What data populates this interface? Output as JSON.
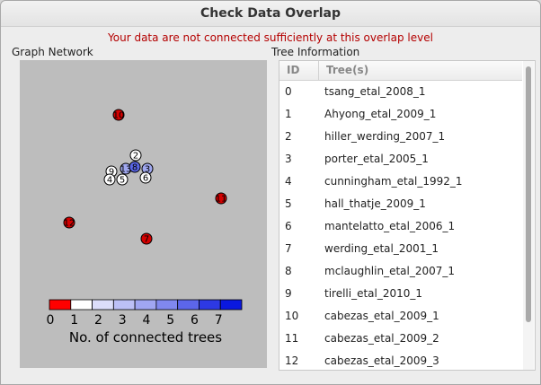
{
  "window": {
    "title": "Check Data Overlap"
  },
  "warning": "Your data are not connected sufficiently at this overlap level",
  "graph": {
    "label": "Graph Network",
    "nodes": [
      {
        "id": "10",
        "color": "#d40000"
      },
      {
        "id": "2",
        "color": "#ffffff"
      },
      {
        "id": "9",
        "color": "#ffffff"
      },
      {
        "id": "13",
        "color": "#a0a8f0"
      },
      {
        "id": "8",
        "color": "#5a66e6"
      },
      {
        "id": "3",
        "color": "#a0a8f0"
      },
      {
        "id": "4",
        "color": "#ffffff"
      },
      {
        "id": "5",
        "color": "#ffffff"
      },
      {
        "id": "6",
        "color": "#ffffff"
      },
      {
        "id": "11",
        "color": "#d40000"
      },
      {
        "id": "12",
        "color": "#d40000"
      },
      {
        "id": "7",
        "color": "#d40000"
      }
    ],
    "colorbar": {
      "ticks": [
        "0",
        "1",
        "2",
        "3",
        "4",
        "5",
        "6",
        "7"
      ],
      "colors": [
        "#ff0000",
        "#ffffff",
        "#dcdefa",
        "#bcc0f6",
        "#a0a6f2",
        "#8088ee",
        "#5c66ea",
        "#2d39e4",
        "#0a18df"
      ],
      "label": "No. of connected trees"
    }
  },
  "tree_info": {
    "label": "Tree Information",
    "columns": [
      "ID",
      "Tree(s)"
    ],
    "rows": [
      {
        "id": "0",
        "name": "tsang_etal_2008_1"
      },
      {
        "id": "1",
        "name": "Ahyong_etal_2009_1"
      },
      {
        "id": "2",
        "name": "hiller_werding_2007_1"
      },
      {
        "id": "3",
        "name": "porter_etal_2005_1"
      },
      {
        "id": "4",
        "name": "cunningham_etal_1992_1"
      },
      {
        "id": "5",
        "name": "hall_thatje_2009_1"
      },
      {
        "id": "6",
        "name": "mantelatto_etal_2006_1"
      },
      {
        "id": "7",
        "name": "werding_etal_2001_1"
      },
      {
        "id": "8",
        "name": "mclaughlin_etal_2007_1"
      },
      {
        "id": "9",
        "name": "tirelli_etal_2010_1"
      },
      {
        "id": "10",
        "name": "cabezas_etal_2009_1"
      },
      {
        "id": "11",
        "name": "cabezas_etal_2009_2"
      },
      {
        "id": "12",
        "name": "cabezas_etal_2009_3"
      }
    ]
  }
}
